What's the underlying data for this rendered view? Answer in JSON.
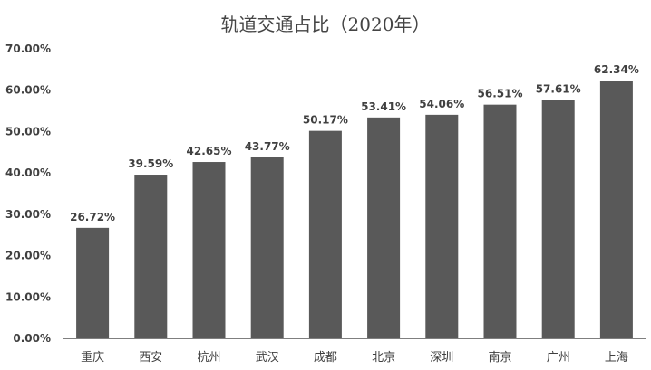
{
  "chart_data": {
    "type": "bar",
    "title": "轨道交通占比（2020年）",
    "xlabel": "",
    "ylabel": "",
    "categories": [
      "重庆",
      "西安",
      "杭州",
      "武汉",
      "成都",
      "北京",
      "深圳",
      "南京",
      "广州",
      "上海"
    ],
    "values": [
      26.72,
      39.59,
      42.65,
      43.77,
      50.17,
      53.41,
      54.06,
      56.51,
      57.61,
      62.34
    ],
    "value_labels": [
      "26.72%",
      "39.59%",
      "42.65%",
      "43.77%",
      "50.17%",
      "53.41%",
      "54.06%",
      "56.51%",
      "57.61%",
      "62.34%"
    ],
    "ylim": [
      0,
      70
    ],
    "yticks": [
      0,
      10,
      20,
      30,
      40,
      50,
      60,
      70
    ],
    "ytick_labels": [
      "0.00%",
      "10.00%",
      "20.00%",
      "30.00%",
      "40.00%",
      "50.00%",
      "60.00%",
      "70.00%"
    ],
    "grid": false,
    "legend": "none",
    "bar_color": "#595959",
    "axis_color": "#7f7f7f",
    "text_color": "#404040"
  }
}
